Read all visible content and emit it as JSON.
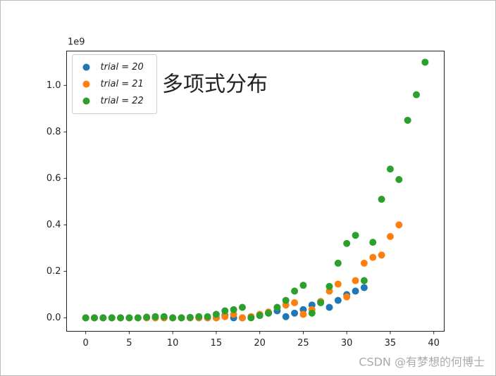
{
  "chart_data": {
    "type": "scatter",
    "annotation": "多项式分布",
    "offset_label": "1e9",
    "watermark": "CSDN @有梦想的何博士",
    "legend": "upper left",
    "xlim": [
      -2.2,
      41.2
    ],
    "ylim": [
      -0.058,
      1.148
    ],
    "xticks": [
      0,
      5,
      10,
      15,
      20,
      25,
      30,
      35,
      40
    ],
    "yticks": [
      {
        "value": 0,
        "label": "0.0"
      },
      0.2,
      0.4,
      0.6,
      0.8,
      {
        "value": 1,
        "label": "1.0"
      }
    ],
    "series": [
      {
        "name": "trial = 20",
        "color": "#1f77b4",
        "x": [
          0,
          1,
          2,
          3,
          4,
          5,
          6,
          7,
          8,
          9,
          10,
          11,
          12,
          13,
          14,
          15,
          16,
          17,
          18,
          19,
          20,
          21,
          22,
          23,
          24,
          25,
          26,
          27,
          28,
          29,
          30,
          31,
          32
        ],
        "values": [
          0,
          0,
          0,
          0,
          0,
          0,
          0,
          0,
          0,
          0,
          0,
          0,
          0,
          0,
          0,
          0,
          0.01,
          0,
          0,
          0.005,
          0.01,
          0.02,
          0.03,
          0.005,
          0.02,
          0.035,
          0.055,
          0.07,
          0.045,
          0.075,
          0.1,
          0.115,
          0.13
        ]
      },
      {
        "name": "trial = 21",
        "color": "#ff7f0e",
        "x": [
          0,
          1,
          2,
          3,
          4,
          5,
          6,
          7,
          8,
          9,
          10,
          11,
          12,
          13,
          14,
          15,
          16,
          17,
          18,
          19,
          20,
          21,
          22,
          23,
          24,
          25,
          26,
          27,
          28,
          29,
          30,
          31,
          32,
          33,
          34,
          35,
          36
        ],
        "values": [
          0,
          0,
          0,
          0,
          0,
          0,
          0,
          0,
          0,
          0,
          0,
          0,
          0,
          0,
          0,
          0,
          0.005,
          0.015,
          0,
          0.005,
          0.015,
          0.025,
          0.045,
          0.055,
          0.065,
          0.015,
          0.035,
          0.07,
          0.115,
          0.145,
          0.09,
          0.16,
          0.235,
          0.26,
          0.27,
          0.35,
          0.4
        ]
      },
      {
        "name": "trial = 22",
        "color": "#2ca02c",
        "x": [
          0,
          1,
          2,
          3,
          4,
          5,
          6,
          7,
          8,
          9,
          10,
          11,
          12,
          13,
          14,
          15,
          16,
          17,
          18,
          19,
          20,
          21,
          22,
          23,
          24,
          25,
          26,
          27,
          28,
          29,
          30,
          31,
          32,
          33,
          34,
          35,
          36,
          37,
          38,
          39
        ],
        "values": [
          0,
          0,
          0,
          0,
          0,
          0,
          0,
          0.003,
          0.005,
          0.005,
          0,
          0,
          0.002,
          0.005,
          0.005,
          0.015,
          0.03,
          0.035,
          0.045,
          0,
          0.01,
          0.02,
          0.045,
          0.075,
          0.115,
          0.14,
          0.02,
          0.065,
          0.135,
          0.235,
          0.32,
          0.355,
          0.16,
          0.325,
          0.51,
          0.64,
          0.595,
          0.85,
          0.96,
          1.1
        ]
      }
    ]
  }
}
